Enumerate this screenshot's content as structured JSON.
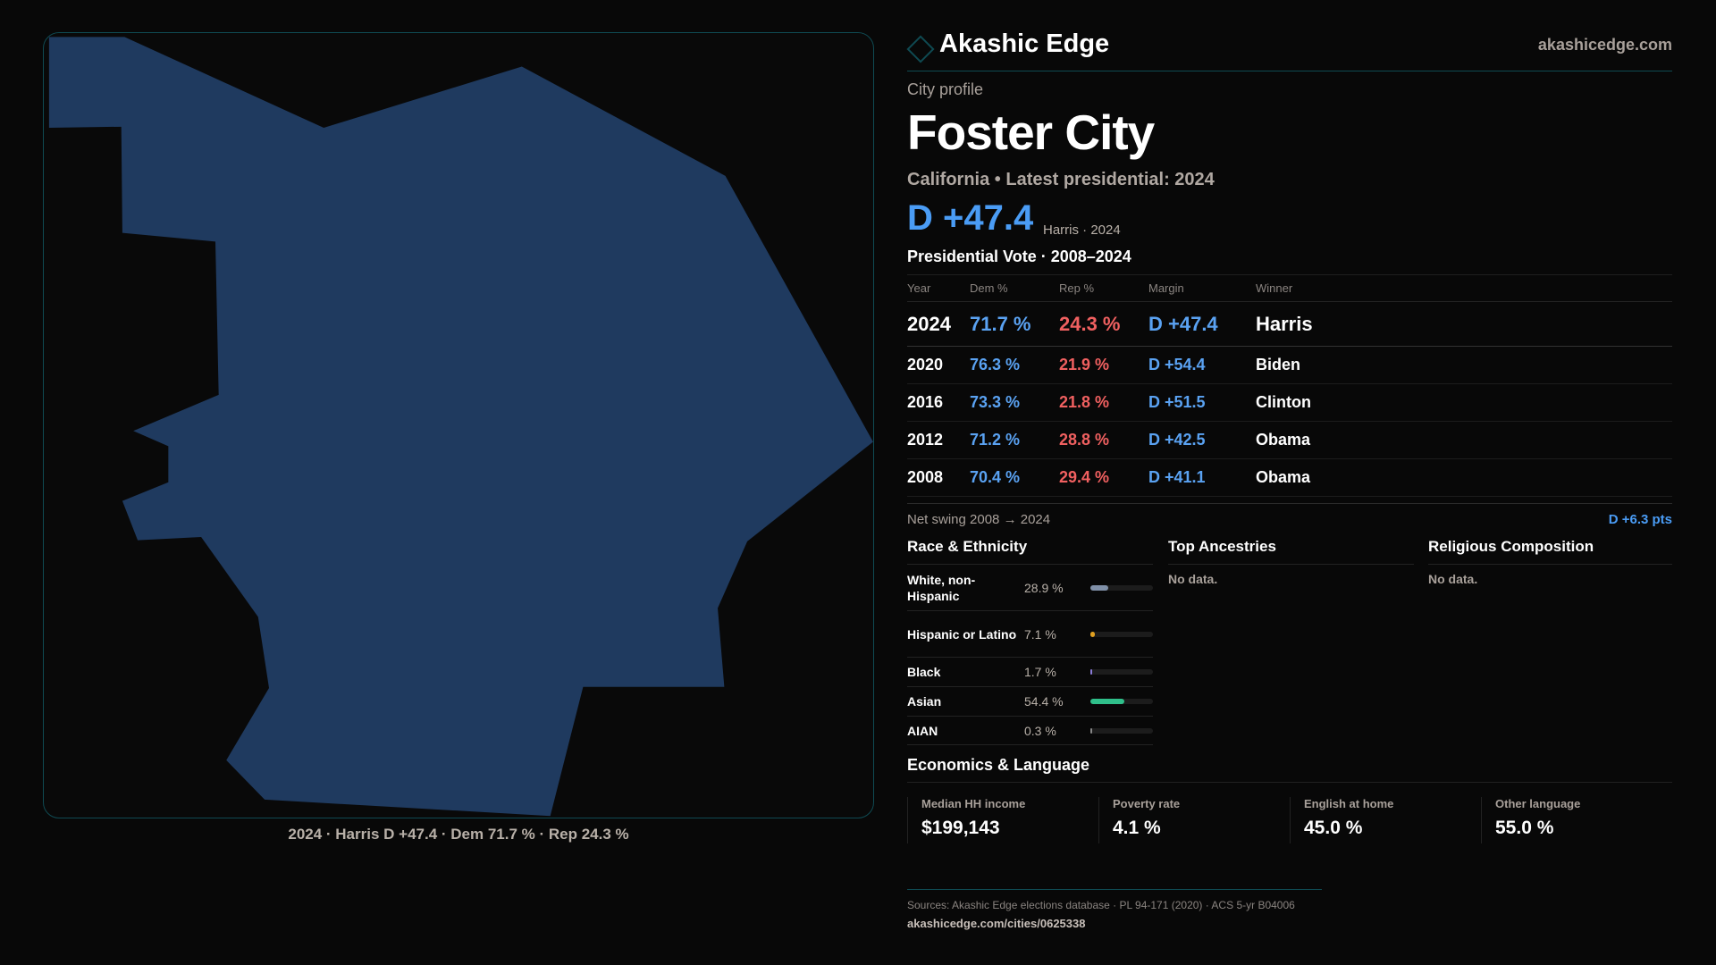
{
  "colors": {
    "map_fill": "#1f3a5f",
    "dem": "#4a9cf5",
    "rep": "#f06060",
    "accent": "#0f4a52"
  },
  "map": {
    "caption": "2024 · Harris D +47.4 · Dem 71.7 % · Rep 24.3 %"
  },
  "header": {
    "brand": "Akashic Edge",
    "site": "akashicedge.com",
    "logo_icon": "diamond-icon"
  },
  "profile": {
    "eyebrow": "City profile",
    "title": "Foster City",
    "subtitle": "California • Latest presidential: 2024",
    "margin": "D +47.4",
    "margin_note": "Harris · 2024"
  },
  "votes": {
    "title": "Presidential Vote · 2008–2024",
    "columns": [
      "Year",
      "Dem %",
      "Rep %",
      "Margin",
      "Winner"
    ],
    "rows": [
      {
        "year": "2024",
        "dem": "71.7 %",
        "rep": "24.3 %",
        "margin": "D +47.4",
        "winner": "Harris"
      },
      {
        "year": "2020",
        "dem": "76.3 %",
        "rep": "21.9 %",
        "margin": "D +54.4",
        "winner": "Biden"
      },
      {
        "year": "2016",
        "dem": "73.3 %",
        "rep": "21.8 %",
        "margin": "D +51.5",
        "winner": "Clinton"
      },
      {
        "year": "2012",
        "dem": "71.2 %",
        "rep": "28.8 %",
        "margin": "D +42.5",
        "winner": "Obama"
      },
      {
        "year": "2008",
        "dem": "70.4 %",
        "rep": "29.4 %",
        "margin": "D +41.1",
        "winner": "Obama"
      }
    ],
    "swing_label": "Net swing 2008 → 2024",
    "swing_value": "D +6.3 pts"
  },
  "race": {
    "title": "Race & Ethnicity",
    "rows": [
      {
        "name": "White, non-Hispanic",
        "pct": "28.9 %",
        "value": 28.9,
        "color": "#8090a8"
      },
      {
        "name": "Hispanic or Latino",
        "pct": "7.1 %",
        "value": 7.1,
        "color": "#e0a020"
      },
      {
        "name": "Black",
        "pct": "1.7 %",
        "value": 1.7,
        "color": "#8a7bd8"
      },
      {
        "name": "Asian",
        "pct": "54.4 %",
        "value": 54.4,
        "color": "#2fbf8a"
      },
      {
        "name": "AIAN",
        "pct": "0.3 %",
        "value": 0.3,
        "color": "#888888"
      }
    ]
  },
  "ancestries": {
    "title": "Top Ancestries",
    "empty": "No data."
  },
  "religion": {
    "title": "Religious Composition",
    "empty": "No data."
  },
  "economics": {
    "title": "Economics & Language",
    "stats": [
      {
        "label": "Median HH income",
        "value": "$199,143"
      },
      {
        "label": "Poverty rate",
        "value": "4.1 %"
      },
      {
        "label": "English at home",
        "value": "45.0 %"
      },
      {
        "label": "Other language",
        "value": "55.0 %"
      }
    ]
  },
  "footer": {
    "sources": "Sources: Akashic Edge elections database · PL 94-171 (2020) · ACS 5-yr B04006",
    "url": "akashicedge.com/cities/0625338"
  }
}
